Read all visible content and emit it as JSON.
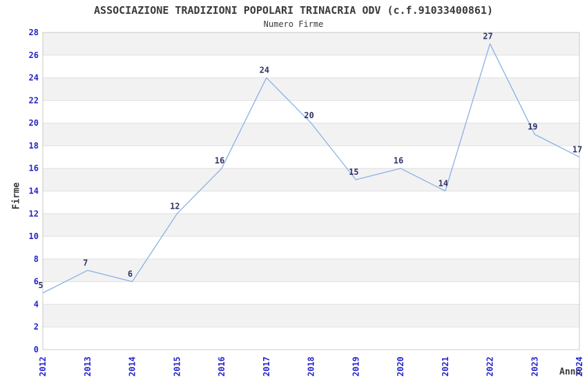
{
  "chart_data": {
    "type": "line",
    "title": "ASSOCIAZIONE TRADIZIONI POPOLARI TRINACRIA ODV (c.f.91033400861)",
    "subtitle": "Numero Firme",
    "xlabel": "Anno",
    "ylabel": "Firme",
    "categories": [
      "2012",
      "2013",
      "2014",
      "2015",
      "2016",
      "2017",
      "2018",
      "2019",
      "2020",
      "2021",
      "2022",
      "2023",
      "2024"
    ],
    "series": [
      {
        "name": "Numero Firme",
        "values": [
          5,
          7,
          6,
          12,
          16,
          24,
          20,
          15,
          16,
          14,
          27,
          19,
          17
        ]
      }
    ],
    "data_labels": [
      "5",
      "7",
      "6",
      "12",
      "16",
      "24",
      "20",
      "15",
      "16",
      "14",
      "27",
      "19",
      "17"
    ],
    "ylim": [
      0,
      28
    ],
    "ytick_step": 2,
    "ytick_labels": [
      "0",
      "2",
      "4",
      "6",
      "8",
      "10",
      "12",
      "14",
      "16",
      "18",
      "20",
      "22",
      "24",
      "26",
      "28"
    ],
    "grid": true,
    "alternating_bands": true,
    "legend_position": "none"
  },
  "colors": {
    "line": "#8ab0e4",
    "tick_label": "#2424cc",
    "data_label": "#333366",
    "band": "#f2f2f2",
    "grid_line": "#e0e0e0",
    "plot_border": "#c8c8c8",
    "heading_text": "#3a3a3a",
    "background": "#ffffff"
  }
}
